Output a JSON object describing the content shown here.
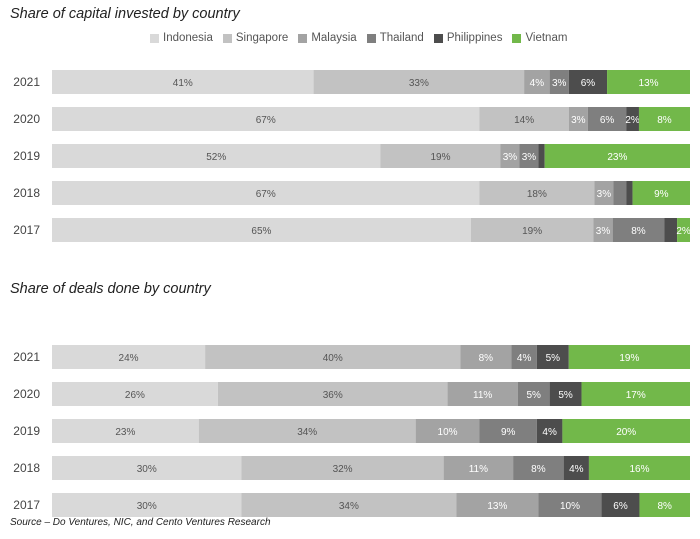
{
  "source": "Source – Do Ventures, NIC, and Cento Ventures Research",
  "legend": {
    "series": [
      "Indonesia",
      "Singapore",
      "Malaysia",
      "Thailand",
      "Philippines",
      "Vietnam"
    ],
    "colors": [
      "#d9d9d9",
      "#c2c2c2",
      "#a3a3a3",
      "#7f7f7f",
      "#4d4d4d",
      "#72b84a"
    ]
  },
  "chart_data": [
    {
      "type": "bar",
      "orientation": "horizontal",
      "stacked": true,
      "title": "Share of capital invested by country",
      "categories": [
        "2021",
        "2020",
        "2019",
        "2018",
        "2017"
      ],
      "series": [
        {
          "name": "Indonesia",
          "values": [
            41,
            67,
            52,
            67,
            65
          ],
          "labels": [
            "41%",
            "67%",
            "52%",
            "67%",
            "65%"
          ]
        },
        {
          "name": "Singapore",
          "values": [
            33,
            14,
            19,
            18,
            19
          ],
          "labels": [
            "33%",
            "14%",
            "19%",
            "18%",
            "19%"
          ]
        },
        {
          "name": "Malaysia",
          "values": [
            4,
            3,
            3,
            3,
            3
          ],
          "labels": [
            "4%",
            "3%",
            "3%",
            "3%",
            "3%"
          ]
        },
        {
          "name": "Thailand",
          "values": [
            3,
            6,
            3,
            2,
            8
          ],
          "labels": [
            "3%",
            "6%",
            "3%",
            "",
            "8%"
          ]
        },
        {
          "name": "Philippines",
          "values": [
            6,
            2,
            1,
            1,
            2
          ],
          "labels": [
            "6%",
            "2%",
            "",
            "",
            ""
          ]
        },
        {
          "name": "Vietnam",
          "values": [
            13,
            8,
            23,
            9,
            2
          ],
          "labels": [
            "13%",
            "8%",
            "23%",
            "9%",
            "2%"
          ]
        }
      ]
    },
    {
      "type": "bar",
      "orientation": "horizontal",
      "stacked": true,
      "title": "Share of deals done by country",
      "categories": [
        "2021",
        "2020",
        "2019",
        "2018",
        "2017"
      ],
      "series": [
        {
          "name": "Indonesia",
          "values": [
            24,
            26,
            23,
            30,
            30
          ],
          "labels": [
            "24%",
            "26%",
            "23%",
            "30%",
            "30%"
          ]
        },
        {
          "name": "Singapore",
          "values": [
            40,
            36,
            34,
            32,
            34
          ],
          "labels": [
            "40%",
            "36%",
            "34%",
            "32%",
            "34%"
          ]
        },
        {
          "name": "Malaysia",
          "values": [
            8,
            11,
            10,
            11,
            13
          ],
          "labels": [
            "8%",
            "11%",
            "10%",
            "11%",
            "13%"
          ]
        },
        {
          "name": "Thailand",
          "values": [
            4,
            5,
            9,
            8,
            10
          ],
          "labels": [
            "4%",
            "5%",
            "9%",
            "8%",
            "10%"
          ]
        },
        {
          "name": "Philippines",
          "values": [
            5,
            5,
            4,
            4,
            6
          ],
          "labels": [
            "5%",
            "5%",
            "4%",
            "4%",
            "6%"
          ]
        },
        {
          "name": "Vietnam",
          "values": [
            19,
            17,
            20,
            16,
            8
          ],
          "labels": [
            "19%",
            "17%",
            "20%",
            "16%",
            "8%"
          ]
        }
      ]
    }
  ]
}
